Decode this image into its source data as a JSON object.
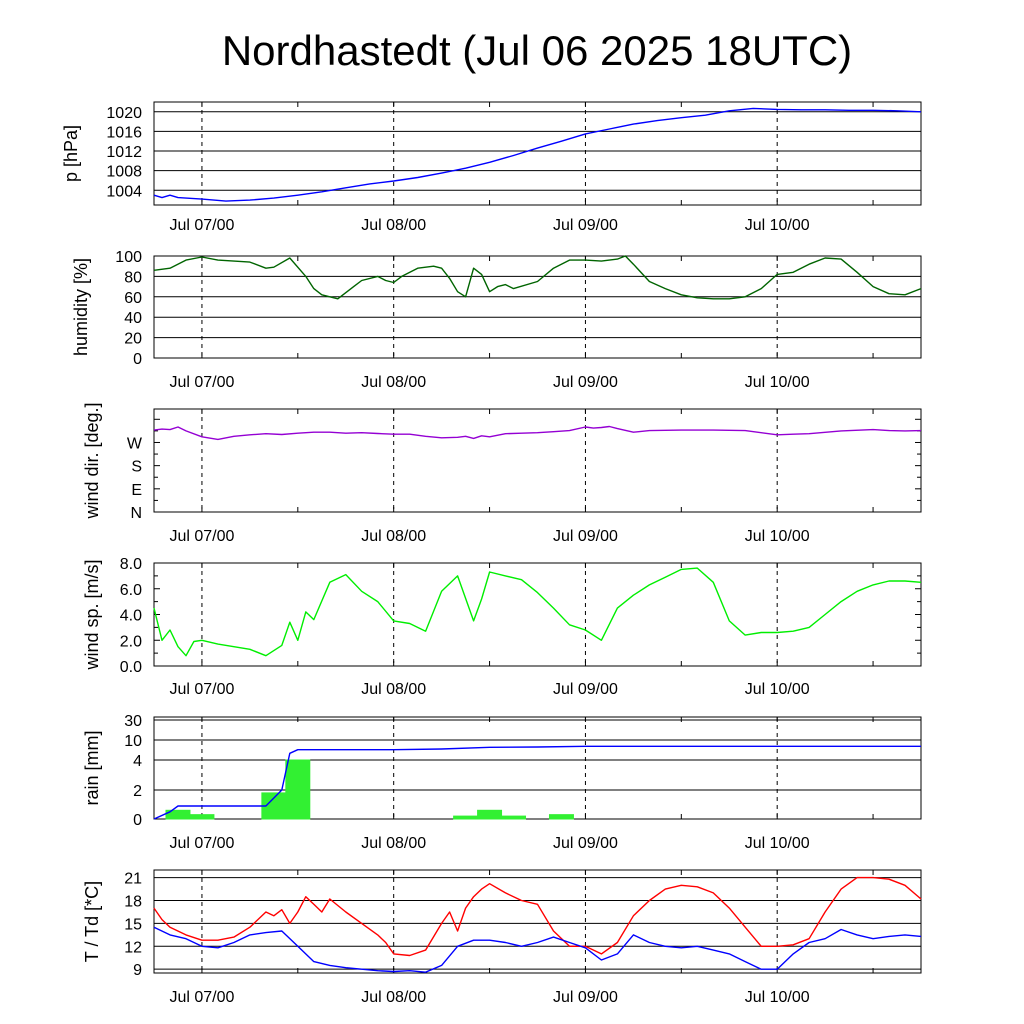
{
  "title": "Nordhastedt (Jul 06 2025 18UTC)",
  "time_labels": [
    "Jul 07/00",
    "Jul 08/00",
    "Jul 09/00",
    "Jul 10/00"
  ],
  "x_axis": {
    "start_hour": 18,
    "end_hour": 114,
    "tick_step_hours": 12,
    "label_hours": [
      24,
      48,
      72,
      96
    ]
  },
  "colors": {
    "pressure": "#0000ff",
    "humidity": "#006400",
    "wind_dir": "#9400d3",
    "wind_speed": "#00ee00",
    "rain_bars": "#32f032",
    "rain_accum": "#0000ff",
    "temperature": "#ff0000",
    "dewpoint": "#0000ff"
  },
  "chart_data": [
    {
      "type": "line",
      "panel": "pressure",
      "ylabel": "p [hPa]",
      "ylim": [
        1001,
        1022
      ],
      "yticks": [
        1004,
        1008,
        1012,
        1016,
        1020
      ],
      "ytick_labels": [
        "1004",
        "1008",
        "1012",
        "1016",
        "1020"
      ],
      "grid": true,
      "series": [
        {
          "x": [
            18,
            19,
            20,
            21,
            24,
            27,
            30,
            33,
            36,
            39,
            42,
            45,
            48,
            51,
            54,
            57,
            60,
            63,
            66,
            69,
            72,
            75,
            78,
            81,
            84,
            87,
            90,
            93,
            96,
            99,
            102,
            105,
            108,
            111,
            114
          ],
          "values": [
            1003,
            1002.5,
            1003,
            1002.5,
            1002.2,
            1001.8,
            1002,
            1002.4,
            1003,
            1003.7,
            1004.5,
            1005.3,
            1005.9,
            1006.6,
            1007.5,
            1008.5,
            1009.7,
            1011.1,
            1012.6,
            1014,
            1015.5,
            1016.5,
            1017.5,
            1018.2,
            1018.8,
            1019.3,
            1020.2,
            1020.7,
            1020.5,
            1020.4,
            1020.4,
            1020.3,
            1020.3,
            1020.2,
            1020
          ]
        }
      ]
    },
    {
      "type": "line",
      "panel": "humidity",
      "ylabel": "humidity [%]",
      "ylim": [
        0,
        100
      ],
      "yticks": [
        0,
        20,
        40,
        60,
        80,
        100
      ],
      "ytick_labels": [
        "0",
        "20",
        "40",
        "60",
        "80",
        "100"
      ],
      "grid": true,
      "series": [
        {
          "x": [
            18,
            20,
            22,
            24,
            26,
            28,
            30,
            32,
            33,
            35,
            37,
            38,
            39,
            41,
            43,
            44,
            46,
            47,
            48,
            49,
            51,
            53,
            54,
            55,
            56,
            57,
            58,
            59,
            60,
            61,
            62,
            63,
            66,
            68,
            70,
            72,
            74,
            76,
            77,
            78,
            80,
            82,
            84,
            86,
            88,
            90,
            92,
            94,
            96,
            98,
            100,
            102,
            104,
            106,
            108,
            110,
            112,
            114
          ],
          "values": [
            86,
            88,
            96,
            99,
            96,
            95,
            94,
            88,
            89,
            98,
            80,
            68,
            62,
            58,
            70,
            76,
            80,
            76,
            74,
            80,
            88,
            90,
            88,
            78,
            65,
            60,
            88,
            82,
            65,
            70,
            72,
            68,
            75,
            88,
            96,
            96,
            95,
            97,
            100,
            92,
            75,
            68,
            62,
            59,
            58,
            58,
            60,
            68,
            82,
            84,
            92,
            98,
            97,
            84,
            70,
            63,
            62,
            68
          ]
        }
      ]
    },
    {
      "type": "line",
      "panel": "wind_direction",
      "ylabel": "wind dir. [deg.]",
      "ylim": [
        0,
        400
      ],
      "yticks": [
        0,
        90,
        180,
        270,
        360
      ],
      "ytick_labels": [
        "N",
        "E",
        "S",
        "W",
        ""
      ],
      "grid": false,
      "series": [
        {
          "x": [
            18,
            19,
            20,
            21,
            22,
            24,
            26,
            28,
            30,
            32,
            34,
            36,
            38,
            40,
            42,
            44,
            46,
            48,
            50,
            52,
            54,
            56,
            57,
            58,
            59,
            60,
            62,
            64,
            66,
            68,
            70,
            72,
            73,
            74,
            75,
            76,
            78,
            80,
            84,
            88,
            92,
            96,
            98,
            100,
            104,
            108,
            110,
            112,
            114
          ],
          "values": [
            318,
            322,
            320,
            330,
            315,
            292,
            282,
            294,
            300,
            304,
            301,
            306,
            310,
            310,
            306,
            308,
            305,
            302,
            302,
            294,
            288,
            290,
            294,
            286,
            296,
            292,
            304,
            306,
            308,
            312,
            316,
            330,
            326,
            328,
            332,
            324,
            310,
            316,
            318,
            318,
            316,
            300,
            302,
            304,
            315,
            320,
            316,
            315,
            316
          ]
        }
      ]
    },
    {
      "type": "line",
      "panel": "wind_speed",
      "ylabel": "wind sp. [m/s]",
      "ylim": [
        0,
        8
      ],
      "yticks": [
        0,
        2,
        4,
        6,
        8
      ],
      "ytick_labels": [
        "0.0",
        "2.0",
        "4.0",
        "6.0",
        "8.0"
      ],
      "grid": false,
      "series": [
        {
          "x": [
            18,
            19,
            20,
            21,
            22,
            23,
            24,
            26,
            28,
            30,
            32,
            34,
            35,
            36,
            37,
            38,
            40,
            42,
            44,
            46,
            48,
            50,
            52,
            54,
            56,
            58,
            59,
            60,
            62,
            64,
            66,
            68,
            70,
            72,
            74,
            76,
            78,
            80,
            82,
            84,
            86,
            88,
            90,
            92,
            94,
            96,
            98,
            100,
            102,
            104,
            106,
            108,
            110,
            112,
            114
          ],
          "values": [
            4.5,
            2.0,
            2.8,
            1.5,
            0.8,
            1.9,
            2.0,
            1.7,
            1.5,
            1.3,
            0.8,
            1.6,
            3.4,
            2.0,
            4.2,
            3.6,
            6.5,
            7.1,
            5.8,
            5.0,
            3.5,
            3.3,
            2.7,
            5.8,
            7.0,
            3.5,
            5.2,
            7.3,
            7.0,
            6.7,
            5.7,
            4.5,
            3.2,
            2.8,
            2.0,
            4.5,
            5.5,
            6.3,
            6.9,
            7.5,
            7.6,
            6.5,
            3.5,
            2.4,
            2.6,
            2.6,
            2.7,
            3.0,
            4.0,
            5.0,
            5.8,
            6.3,
            6.6,
            6.6,
            6.5
          ]
        }
      ]
    },
    {
      "type": "bar",
      "panel": "rain",
      "ylabel": "rain [mm]",
      "ylim": [
        0,
        30
      ],
      "yticks": [
        0,
        2,
        4,
        10,
        30
      ],
      "ytick_labels": [
        "0",
        "2",
        "4",
        "10",
        "30"
      ],
      "grid": true,
      "bar_x": [
        21,
        24,
        27,
        30,
        33,
        36,
        39,
        42,
        45,
        48,
        51,
        54,
        57,
        60,
        63,
        66,
        69,
        72
      ],
      "values": [
        0.6,
        0.3,
        0,
        0,
        1.8,
        4.0,
        0,
        0,
        0,
        0,
        0,
        0,
        0.2,
        0.6,
        0.2,
        0,
        0.3,
        0
      ],
      "series": [
        {
          "name": "accumulated",
          "x": [
            18,
            20,
            21,
            22,
            23,
            24,
            26,
            28,
            30,
            32,
            34,
            35,
            36,
            38,
            42,
            48,
            54,
            60,
            66,
            72,
            84,
            96,
            108,
            114
          ],
          "values": [
            0,
            0.5,
            0.9,
            0.9,
            0.9,
            0.9,
            0.9,
            0.9,
            0.9,
            0.9,
            2.0,
            6.0,
            7.1,
            7.1,
            7.1,
            7.1,
            7.3,
            7.8,
            7.9,
            8.1,
            8.1,
            8.1,
            8.1,
            8.1
          ]
        }
      ]
    },
    {
      "type": "line",
      "panel": "temperature",
      "ylabel": "T / Td [*C]",
      "ylim": [
        8.5,
        22
      ],
      "yticks": [
        9,
        12,
        15,
        18,
        21
      ],
      "ytick_labels": [
        "9",
        "12",
        "15",
        "18",
        "21"
      ],
      "grid": true,
      "series": [
        {
          "name": "T",
          "x": [
            18,
            19,
            20,
            22,
            24,
            26,
            28,
            30,
            32,
            33,
            34,
            35,
            36,
            37,
            38,
            39,
            40,
            42,
            44,
            46,
            47,
            48,
            50,
            52,
            54,
            55,
            56,
            57,
            58,
            59,
            60,
            62,
            64,
            66,
            68,
            70,
            72,
            74,
            76,
            78,
            80,
            82,
            84,
            86,
            88,
            90,
            92,
            94,
            96,
            98,
            100,
            102,
            104,
            106,
            108,
            110,
            112,
            114
          ],
          "values": [
            17.0,
            15.5,
            14.5,
            13.5,
            12.8,
            12.8,
            13.2,
            14.5,
            16.5,
            16.0,
            16.8,
            15.0,
            16.5,
            18.5,
            17.5,
            16.5,
            18.2,
            16.5,
            15.0,
            13.5,
            12.5,
            11.0,
            10.8,
            11.5,
            15.0,
            16.5,
            14.0,
            17.0,
            18.5,
            19.5,
            20.2,
            19.0,
            18.0,
            17.5,
            14.0,
            12.0,
            12.0,
            11.0,
            12.5,
            16.0,
            18.0,
            19.5,
            20.0,
            19.8,
            19.0,
            17.0,
            14.5,
            12.0,
            12.0,
            12.2,
            13.0,
            16.5,
            19.5,
            21.0,
            21.0,
            20.8,
            20.0,
            18.2
          ]
        },
        {
          "name": "Td",
          "x": [
            18,
            20,
            22,
            24,
            26,
            28,
            30,
            32,
            34,
            36,
            38,
            40,
            42,
            44,
            46,
            48,
            50,
            52,
            54,
            56,
            58,
            60,
            62,
            64,
            66,
            68,
            70,
            72,
            74,
            76,
            78,
            80,
            82,
            84,
            86,
            88,
            90,
            92,
            94,
            96,
            98,
            100,
            102,
            104,
            106,
            108,
            110,
            112,
            114
          ],
          "values": [
            14.5,
            13.5,
            13.0,
            12.0,
            11.8,
            12.5,
            13.5,
            13.8,
            14.0,
            12.0,
            10.0,
            9.5,
            9.2,
            9.0,
            8.8,
            8.7,
            8.8,
            8.6,
            9.5,
            12.0,
            12.8,
            12.8,
            12.5,
            12.0,
            12.5,
            13.2,
            12.5,
            11.8,
            10.2,
            11.0,
            13.5,
            12.5,
            12.0,
            11.8,
            12.0,
            11.5,
            11.0,
            10.0,
            9.0,
            9.0,
            11.0,
            12.5,
            13.0,
            14.2,
            13.5,
            13.0,
            13.3,
            13.5,
            13.3
          ]
        }
      ]
    }
  ]
}
